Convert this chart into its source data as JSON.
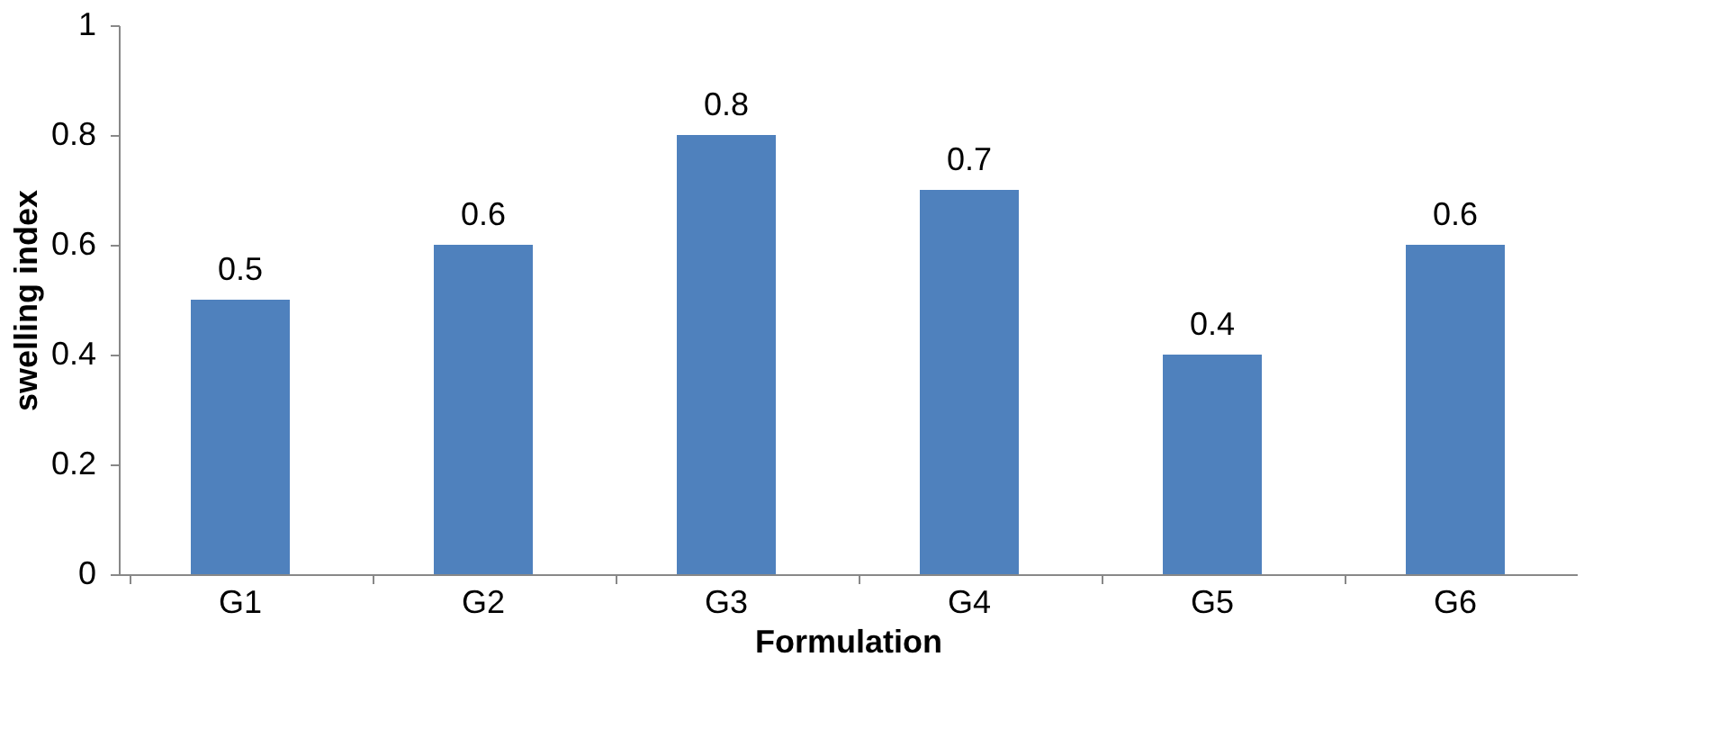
{
  "chart_data": {
    "type": "bar",
    "xlabel": "Formulation",
    "ylabel": "swelling index",
    "categories": [
      "G1",
      "G2",
      "G3",
      "G4",
      "G5",
      "G6"
    ],
    "values": [
      0.5,
      0.6,
      0.8,
      0.7,
      0.4,
      0.6
    ],
    "color": "#4f81bd",
    "ylim": [
      0,
      1
    ],
    "yticks": [
      0,
      0.2,
      0.4,
      0.6,
      0.8,
      1
    ],
    "grid": false,
    "data_labels": true
  }
}
